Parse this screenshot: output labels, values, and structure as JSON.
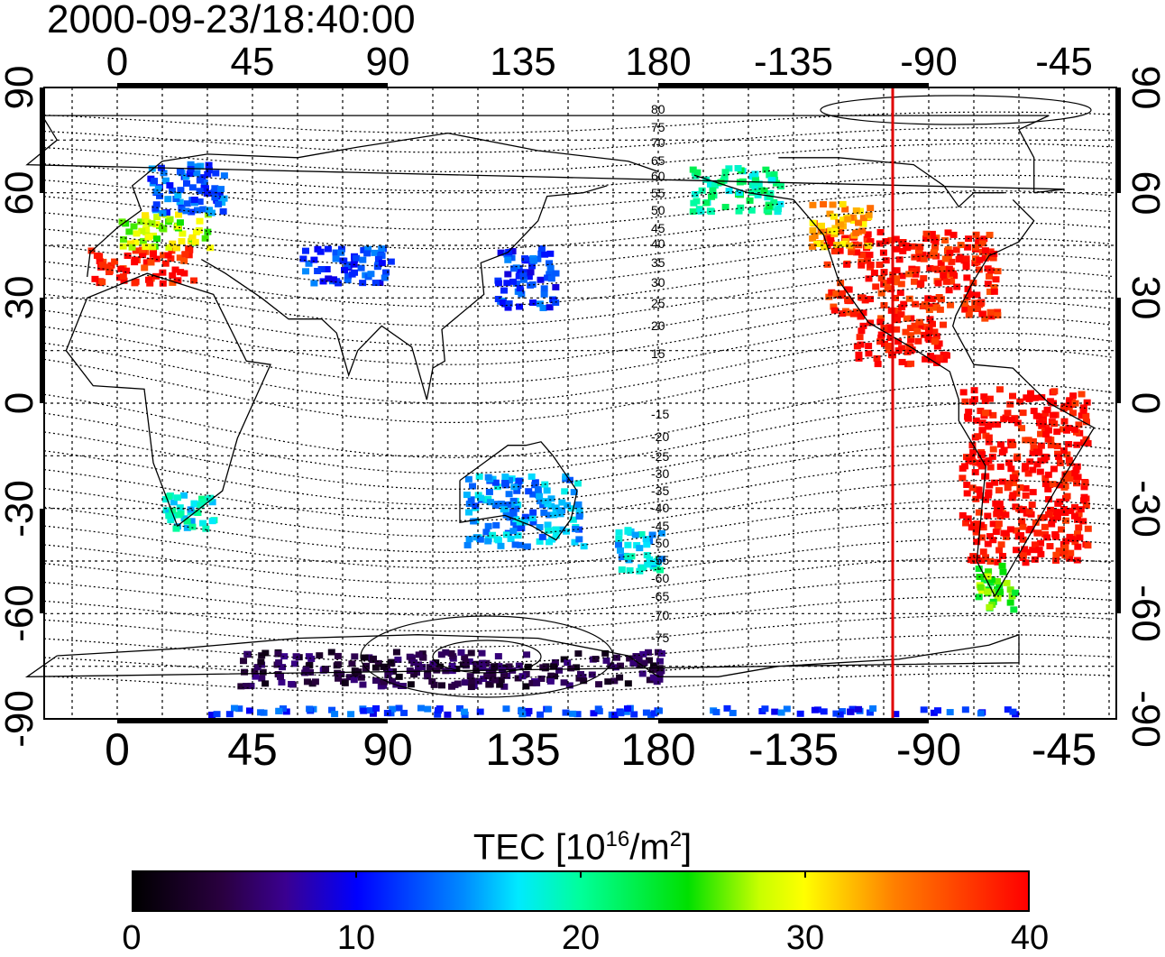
{
  "title": "2000-09-23/18:40:00",
  "x_ticks": [
    "0",
    "45",
    "90",
    "135",
    "180",
    "-135",
    "-90",
    "-45"
  ],
  "y_ticks": [
    "90",
    "60",
    "30",
    "0",
    "-30",
    "-60",
    "-90"
  ],
  "contour_labels_north": [
    "80",
    "75",
    "70",
    "65",
    "60",
    "55",
    "50",
    "45",
    "40",
    "35",
    "30",
    "25",
    "20",
    "15"
  ],
  "contour_labels_south": [
    "-15",
    "-20",
    "-25",
    "-30",
    "-35",
    "-40",
    "-45",
    "-50",
    "-55",
    "-60",
    "-65",
    "-70",
    "-75"
  ],
  "colorbar": {
    "title_main": "TEC  [10",
    "title_sup1": "16",
    "title_mid": "/m",
    "title_sup2": "2",
    "title_end": "]",
    "ticks": [
      "0",
      "10",
      "20",
      "30",
      "40"
    ],
    "min": 0,
    "max": 40
  },
  "marker_longitude": -102,
  "colors": {
    "marker": "#e00000",
    "scale": [
      "#000000",
      "#3a006a",
      "#0000ff",
      "#00e6ff",
      "#00e000",
      "#ffff00",
      "#ff8000",
      "#ff0000"
    ]
  },
  "map_regions": [
    {
      "name": "usa",
      "lon": [
        -125,
        -68
      ],
      "lat": [
        25,
        50
      ],
      "tec": 39
    },
    {
      "name": "canada-west",
      "lon": [
        -130,
        -110
      ],
      "lat": [
        45,
        58
      ],
      "tec": 33
    },
    {
      "name": "alaska",
      "lon": [
        -170,
        -140
      ],
      "lat": [
        55,
        68
      ],
      "tec": 20
    },
    {
      "name": "mexico",
      "lon": [
        -115,
        -85
      ],
      "lat": [
        12,
        25
      ],
      "tec": 40
    },
    {
      "name": "south-america",
      "lon": [
        -80,
        -38
      ],
      "lat": [
        -45,
        5
      ],
      "tec": 40
    },
    {
      "name": "patagonia",
      "lon": [
        -75,
        -62
      ],
      "lat": [
        -58,
        -45
      ],
      "tec": 26
    },
    {
      "name": "europe-south",
      "lon": [
        -10,
        25
      ],
      "lat": [
        35,
        45
      ],
      "tec": 39
    },
    {
      "name": "europe-mid",
      "lon": [
        0,
        30
      ],
      "lat": [
        45,
        55
      ],
      "tec": 28
    },
    {
      "name": "scandinavia",
      "lon": [
        10,
        35
      ],
      "lat": [
        55,
        70
      ],
      "tec": 13
    },
    {
      "name": "east-asia",
      "lon": [
        125,
        145
      ],
      "lat": [
        28,
        45
      ],
      "tec": 12
    },
    {
      "name": "central-asia",
      "lon": [
        60,
        90
      ],
      "lat": [
        35,
        45
      ],
      "tec": 12
    },
    {
      "name": "australia",
      "lon": [
        115,
        155
      ],
      "lat": [
        -40,
        -20
      ],
      "tec": 15
    },
    {
      "name": "new-zealand",
      "lon": [
        165,
        180
      ],
      "lat": [
        -47,
        -35
      ],
      "tec": 17
    },
    {
      "name": "southern-africa",
      "lon": [
        15,
        32
      ],
      "lat": [
        -35,
        -25
      ],
      "tec": 18
    },
    {
      "name": "antarctic-coast",
      "lon": [
        40,
        180
      ],
      "lat": [
        -80,
        -70
      ],
      "tec": 4
    },
    {
      "name": "south-pole-band",
      "lon": [
        30,
        300
      ],
      "lat": [
        -88,
        -86
      ],
      "tec": 12
    }
  ]
}
